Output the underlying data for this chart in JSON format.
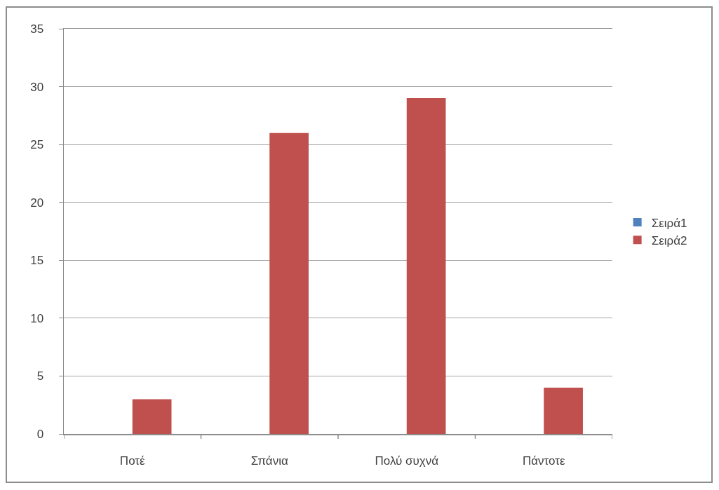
{
  "chart_data": {
    "type": "bar",
    "categories": [
      "Ποτέ",
      "Σπάνια",
      "Πολύ συχνά",
      "Πάντοτε"
    ],
    "series": [
      {
        "name": "Σειρά1",
        "color": "#4f81bd",
        "values": [
          null,
          null,
          null,
          null
        ]
      },
      {
        "name": "Σειρά2",
        "color": "#c0504d",
        "values": [
          3,
          26,
          29,
          4
        ]
      }
    ],
    "ylim": [
      0,
      35
    ],
    "yticks": [
      0,
      5,
      10,
      15,
      20,
      25,
      30,
      35
    ],
    "grid": "y",
    "legend": "right"
  }
}
